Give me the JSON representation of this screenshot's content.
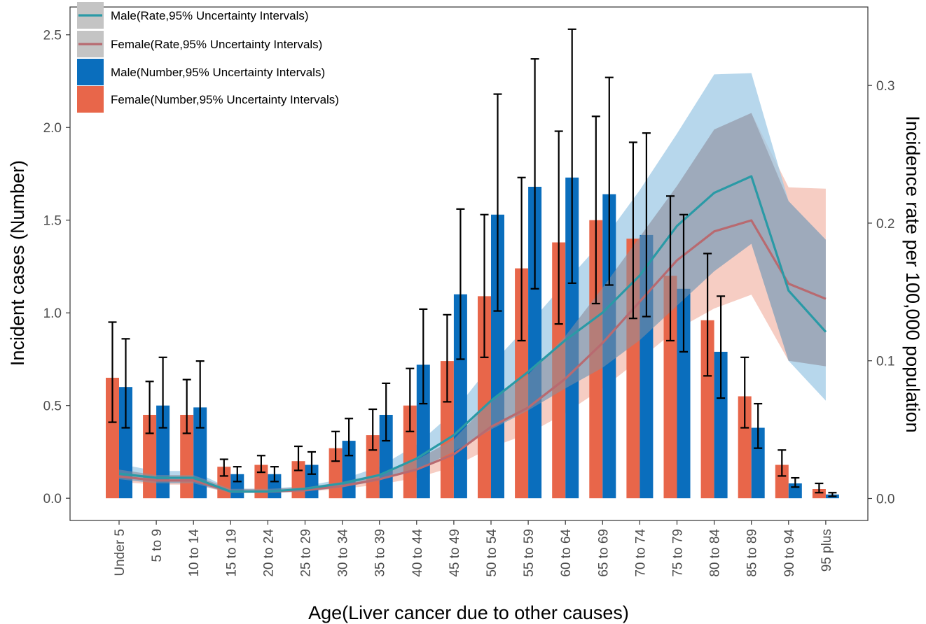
{
  "chart_data": {
    "type": "bar",
    "title": "",
    "xlabel": "Age(Liver cancer due to other causes)",
    "ylabel": "Incident cases (Number)",
    "y2label": "Incidence rate per 100,000 population",
    "categories": [
      "Under 5",
      "5 to 9",
      "10 to 14",
      "15 to 19",
      "20 to 24",
      "25 to 29",
      "30 to 34",
      "35 to 39",
      "40 to 44",
      "45 to 49",
      "50 to 54",
      "55 to 59",
      "60 to 64",
      "65 to 69",
      "70 to 74",
      "75 to 79",
      "80 to 84",
      "85 to 89",
      "90 to 94",
      "95 plus"
    ],
    "ylim": [
      -0.12,
      2.65
    ],
    "y2lim": [
      -0.016,
      0.357
    ],
    "yticks": [
      "0.0",
      "0.5",
      "1.0",
      "1.5",
      "2.0",
      "2.5"
    ],
    "y2ticks": [
      "0.0",
      "0.1",
      "0.2",
      "0.3"
    ],
    "legend_position": "top-left",
    "colors": {
      "male_bar": "#0a6ebd",
      "female_bar": "#e8664a",
      "male_line": "#2a9aa6",
      "female_line": "#b86a70",
      "male_band": "#9fc9e6",
      "female_band": "#f2b8aa",
      "legend_key_bg": "#c4c4c4"
    },
    "legend": [
      "Male(Rate,95% Uncertainty Intervals)",
      "Female(Rate,95% Uncertainty Intervals)",
      "Male(Number,95% Uncertainty Intervals)",
      "Female(Number,95% Uncertainty Intervals)"
    ],
    "bar_series": [
      {
        "name": "Female(Number,95% Uncertainty Intervals)",
        "values": [
          0.65,
          0.45,
          0.45,
          0.17,
          0.18,
          0.2,
          0.27,
          0.34,
          0.5,
          0.74,
          1.09,
          1.24,
          1.38,
          1.5,
          1.4,
          1.2,
          0.96,
          0.55,
          0.18,
          0.05
        ],
        "lower": [
          0.41,
          0.35,
          0.35,
          0.12,
          0.14,
          0.15,
          0.2,
          0.26,
          0.36,
          0.52,
          0.76,
          0.85,
          0.94,
          1.05,
          0.97,
          0.85,
          0.66,
          0.38,
          0.12,
          0.03
        ],
        "upper": [
          0.95,
          0.63,
          0.64,
          0.21,
          0.23,
          0.28,
          0.36,
          0.48,
          0.7,
          0.99,
          1.53,
          1.73,
          1.98,
          2.06,
          1.92,
          1.63,
          1.32,
          0.76,
          0.26,
          0.08
        ]
      },
      {
        "name": "Male(Number,95% Uncertainty Intervals)",
        "values": [
          0.6,
          0.5,
          0.49,
          0.13,
          0.13,
          0.18,
          0.31,
          0.45,
          0.72,
          1.1,
          1.53,
          1.68,
          1.73,
          1.64,
          1.42,
          1.13,
          0.79,
          0.38,
          0.08,
          0.02
        ],
        "lower": [
          0.38,
          0.38,
          0.38,
          0.09,
          0.09,
          0.13,
          0.23,
          0.31,
          0.51,
          0.75,
          1.01,
          1.13,
          1.16,
          1.15,
          0.98,
          0.79,
          0.54,
          0.27,
          0.06,
          0.01
        ],
        "upper": [
          0.86,
          0.76,
          0.74,
          0.17,
          0.17,
          0.25,
          0.43,
          0.62,
          1.02,
          1.56,
          2.18,
          2.37,
          2.53,
          2.27,
          1.97,
          1.53,
          1.09,
          0.51,
          0.11,
          0.03
        ]
      }
    ],
    "rate_series": [
      {
        "name": "Male(Rate,95% Uncertainty Intervals)",
        "values": [
          0.018,
          0.015,
          0.015,
          0.005,
          0.005,
          0.007,
          0.011,
          0.017,
          0.029,
          0.046,
          0.071,
          0.092,
          0.115,
          0.135,
          0.162,
          0.198,
          0.222,
          0.234,
          0.151,
          0.121
        ],
        "lower": [
          0.014,
          0.011,
          0.011,
          0.004,
          0.004,
          0.005,
          0.008,
          0.013,
          0.021,
          0.034,
          0.05,
          0.064,
          0.08,
          0.095,
          0.115,
          0.14,
          0.165,
          0.185,
          0.1,
          0.071
        ],
        "upper": [
          0.025,
          0.02,
          0.02,
          0.007,
          0.007,
          0.009,
          0.014,
          0.023,
          0.039,
          0.063,
          0.097,
          0.126,
          0.157,
          0.187,
          0.224,
          0.265,
          0.308,
          0.309,
          0.216,
          0.188
        ]
      },
      {
        "name": "Female(Rate,95% Uncertainty Intervals)",
        "values": [
          0.016,
          0.013,
          0.013,
          0.005,
          0.005,
          0.006,
          0.009,
          0.014,
          0.021,
          0.032,
          0.052,
          0.066,
          0.087,
          0.113,
          0.143,
          0.173,
          0.194,
          0.202,
          0.156,
          0.145
        ],
        "lower": [
          0.012,
          0.01,
          0.01,
          0.004,
          0.004,
          0.005,
          0.007,
          0.01,
          0.015,
          0.023,
          0.037,
          0.047,
          0.062,
          0.08,
          0.101,
          0.123,
          0.138,
          0.148,
          0.1,
          0.096
        ],
        "upper": [
          0.021,
          0.017,
          0.017,
          0.007,
          0.007,
          0.008,
          0.012,
          0.018,
          0.028,
          0.043,
          0.071,
          0.09,
          0.118,
          0.153,
          0.19,
          0.227,
          0.268,
          0.28,
          0.226,
          0.225
        ]
      }
    ]
  }
}
